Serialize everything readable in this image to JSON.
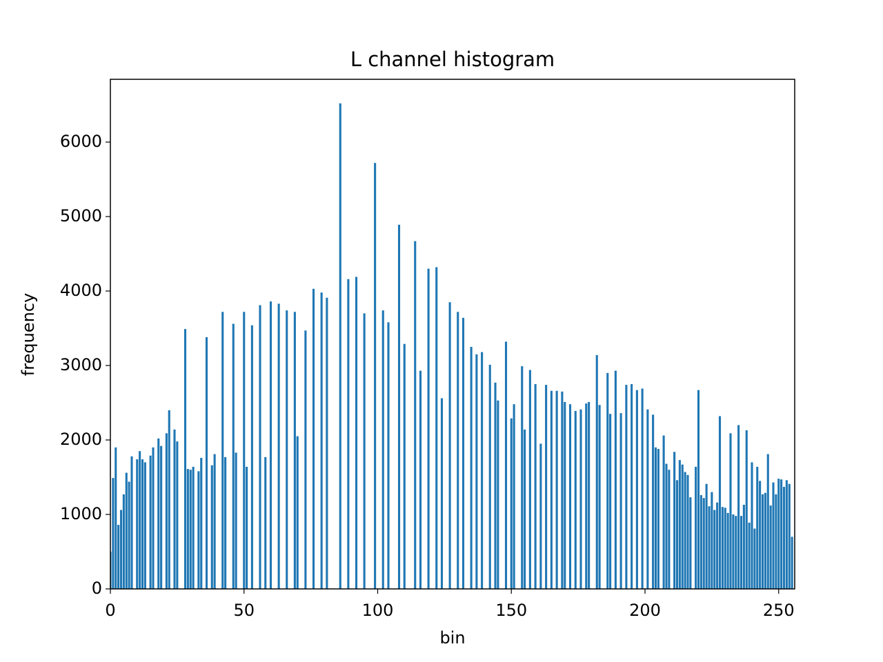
{
  "chart_data": {
    "type": "bar",
    "title": "L channel histogram",
    "xlabel": "bin",
    "ylabel": "frequency",
    "color": "#1f77b4",
    "x": [
      0,
      1,
      2,
      3,
      4,
      5,
      6,
      7,
      8,
      9,
      10,
      11,
      12,
      13,
      14,
      15,
      16,
      17,
      18,
      19,
      20,
      21,
      22,
      23,
      24,
      25,
      26,
      27,
      28,
      29,
      30,
      31,
      32,
      33,
      34,
      35,
      36,
      37,
      38,
      39,
      40,
      41,
      42,
      43,
      44,
      45,
      46,
      47,
      48,
      49,
      50,
      51,
      52,
      53,
      54,
      55,
      56,
      57,
      58,
      59,
      60,
      61,
      62,
      63,
      64,
      65,
      66,
      67,
      68,
      69,
      70,
      71,
      72,
      73,
      74,
      75,
      76,
      77,
      78,
      79,
      80,
      81,
      82,
      83,
      84,
      85,
      86,
      87,
      88,
      89,
      90,
      91,
      92,
      93,
      94,
      95,
      96,
      97,
      98,
      99,
      100,
      101,
      102,
      103,
      104,
      105,
      106,
      107,
      108,
      109,
      110,
      111,
      112,
      113,
      114,
      115,
      116,
      117,
      118,
      119,
      120,
      121,
      122,
      123,
      124,
      125,
      126,
      127,
      128,
      129,
      130,
      131,
      132,
      133,
      134,
      135,
      136,
      137,
      138,
      139,
      140,
      141,
      142,
      143,
      144,
      145,
      146,
      147,
      148,
      149,
      150,
      151,
      152,
      153,
      154,
      155,
      156,
      157,
      158,
      159,
      160,
      161,
      162,
      163,
      164,
      165,
      166,
      167,
      168,
      169,
      170,
      171,
      172,
      173,
      174,
      175,
      176,
      177,
      178,
      179,
      180,
      181,
      182,
      183,
      184,
      185,
      186,
      187,
      188,
      189,
      190,
      191,
      192,
      193,
      194,
      195,
      196,
      197,
      198,
      199,
      200,
      201,
      202,
      203,
      204,
      205,
      206,
      207,
      208,
      209,
      210,
      211,
      212,
      213,
      214,
      215,
      216,
      217,
      218,
      219,
      220,
      221,
      222,
      223,
      224,
      225,
      226,
      227,
      228,
      229,
      230,
      231,
      232,
      233,
      234,
      235,
      236,
      237,
      238,
      239,
      240,
      241,
      242,
      243,
      244,
      245,
      246,
      247,
      248,
      249,
      250,
      251,
      252,
      253,
      254,
      255
    ],
    "values": [
      500,
      1490,
      1900,
      860,
      1060,
      1270,
      1560,
      1440,
      1780,
      0,
      1740,
      1850,
      1740,
      1700,
      0,
      1790,
      1900,
      0,
      2020,
      1920,
      0,
      2090,
      2400,
      0,
      2140,
      1980,
      0,
      0,
      3490,
      1610,
      1600,
      1640,
      0,
      1580,
      1760,
      0,
      3380,
      0,
      1660,
      1810,
      0,
      0,
      3720,
      1770,
      0,
      0,
      3560,
      1830,
      0,
      0,
      3720,
      1640,
      0,
      3540,
      0,
      0,
      3810,
      0,
      1770,
      0,
      3860,
      0,
      0,
      3830,
      0,
      0,
      3740,
      0,
      0,
      3720,
      2050,
      0,
      0,
      3470,
      0,
      0,
      4030,
      0,
      0,
      3980,
      0,
      3910,
      0,
      0,
      0,
      0,
      6520,
      0,
      0,
      4160,
      0,
      0,
      4190,
      0,
      0,
      3700,
      0,
      0,
      0,
      5720,
      0,
      0,
      3740,
      0,
      3580,
      0,
      0,
      0,
      4890,
      0,
      3290,
      0,
      0,
      0,
      4670,
      0,
      2930,
      0,
      0,
      4300,
      0,
      0,
      4320,
      0,
      2560,
      0,
      0,
      3850,
      0,
      0,
      3720,
      0,
      3640,
      0,
      0,
      3250,
      0,
      3150,
      0,
      3180,
      0,
      0,
      3010,
      0,
      2770,
      2530,
      0,
      0,
      3320,
      0,
      2290,
      2480,
      0,
      0,
      2990,
      2140,
      0,
      2940,
      0,
      2750,
      0,
      1950,
      0,
      2740,
      0,
      2660,
      0,
      2660,
      0,
      2650,
      2510,
      0,
      2480,
      0,
      2390,
      0,
      2410,
      0,
      2490,
      2510,
      0,
      0,
      3140,
      2470,
      0,
      0,
      2900,
      2350,
      0,
      2930,
      0,
      2360,
      0,
      2740,
      0,
      2750,
      0,
      2670,
      0,
      2690,
      0,
      2410,
      0,
      2340,
      1900,
      1880,
      0,
      2060,
      1680,
      1600,
      0,
      1840,
      1460,
      1730,
      1670,
      1570,
      1530,
      1230,
      0,
      1640,
      2670,
      1260,
      1220,
      1410,
      1110,
      1300,
      1060,
      1160,
      2320,
      1100,
      1090,
      1020,
      2090,
      1000,
      980,
      2200,
      980,
      1130,
      2130,
      890,
      1700,
      810,
      1640,
      1450,
      1270,
      1290,
      1810,
      1120,
      1430,
      1270,
      1480,
      1470,
      1370,
      1460,
      1410,
      700
    ],
    "xlim": [
      0,
      256
    ],
    "xticks": [
      0,
      50,
      100,
      150,
      200,
      250
    ],
    "ylim": [
      0,
      6843
    ],
    "yticks": [
      0,
      1000,
      2000,
      3000,
      4000,
      5000,
      6000
    ]
  }
}
